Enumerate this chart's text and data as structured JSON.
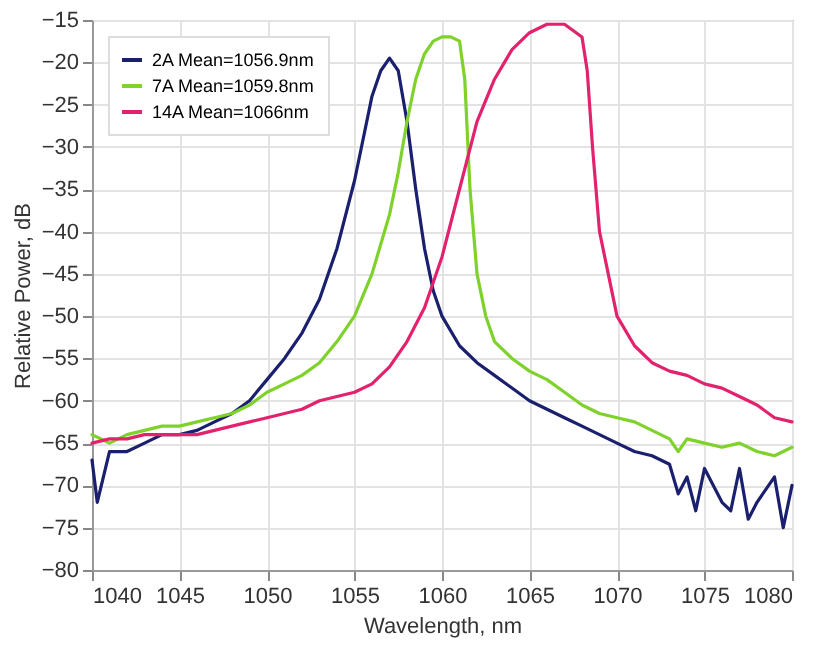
{
  "chart_data": {
    "type": "line",
    "xlabel": "Wavelength, nm",
    "ylabel": "Relative Power, dB",
    "xlim": [
      1040,
      1080
    ],
    "ylim": [
      -80,
      -15
    ],
    "xticks": [
      1040,
      1045,
      1050,
      1055,
      1060,
      1065,
      1070,
      1075,
      1080
    ],
    "yticks": [
      -80,
      -75,
      -70,
      -65,
      -60,
      -55,
      -50,
      -45,
      -40,
      -35,
      -30,
      -25,
      -20,
      -15
    ],
    "grid": true,
    "legend": "top left",
    "series": [
      {
        "name": "2A Mean=1056.9nm",
        "color": "#1a1f6e",
        "x": [
          1040,
          1040.3,
          1041,
          1042,
          1043,
          1044,
          1045,
          1046,
          1047,
          1048,
          1049,
          1050,
          1051,
          1052,
          1053,
          1054,
          1055,
          1055.5,
          1056,
          1056.5,
          1057,
          1057.5,
          1058,
          1058.5,
          1059,
          1059.5,
          1060,
          1061,
          1062,
          1063,
          1064,
          1065,
          1066,
          1067,
          1068,
          1069,
          1070,
          1071,
          1072,
          1073,
          1073.5,
          1074,
          1074.5,
          1075,
          1076,
          1076.5,
          1077,
          1077.5,
          1078,
          1079,
          1079.5,
          1080
        ],
        "values": [
          -67,
          -72,
          -66,
          -66,
          -65,
          -64,
          -64,
          -63.5,
          -62.5,
          -61.5,
          -60,
          -57.5,
          -55,
          -52,
          -48,
          -42,
          -34,
          -29,
          -24,
          -21,
          -19.5,
          -21,
          -27,
          -35,
          -42,
          -47,
          -50,
          -53.5,
          -55.5,
          -57,
          -58.5,
          -60,
          -61,
          -62,
          -63,
          -64,
          -65,
          -66,
          -66.5,
          -67.5,
          -71,
          -69,
          -73,
          -68,
          -72,
          -73,
          -68,
          -74,
          -72,
          -69,
          -75,
          -70
        ]
      },
      {
        "name": "7A Mean=1059.8nm",
        "color": "#7fd12b",
        "x": [
          1040,
          1041,
          1042,
          1043,
          1044,
          1045,
          1046,
          1047,
          1048,
          1049,
          1050,
          1051,
          1052,
          1053,
          1054,
          1055,
          1056,
          1057,
          1057.5,
          1058,
          1058.5,
          1059,
          1059.5,
          1060,
          1060.5,
          1061,
          1061.3,
          1061.6,
          1062,
          1062.5,
          1063,
          1064,
          1065,
          1066,
          1067,
          1068,
          1069,
          1070,
          1071,
          1072,
          1073,
          1073.5,
          1074,
          1075,
          1076,
          1077,
          1078,
          1079,
          1080
        ],
        "values": [
          -64,
          -65,
          -64,
          -63.5,
          -63,
          -63,
          -62.5,
          -62,
          -61.5,
          -60.5,
          -59,
          -58,
          -57,
          -55.5,
          -53,
          -50,
          -45,
          -38,
          -33,
          -27,
          -22,
          -19,
          -17.5,
          -17,
          -17,
          -17.5,
          -22,
          -35,
          -45,
          -50,
          -53,
          -55,
          -56.5,
          -57.5,
          -59,
          -60.5,
          -61.5,
          -62,
          -62.5,
          -63.5,
          -64.5,
          -66,
          -64.5,
          -65,
          -65.5,
          -65,
          -66,
          -66.5,
          -65.5
        ]
      },
      {
        "name": "14A Mean=1066nm",
        "color": "#e3226e",
        "x": [
          1040,
          1041,
          1042,
          1043,
          1044,
          1045,
          1046,
          1047,
          1048,
          1049,
          1050,
          1051,
          1052,
          1053,
          1054,
          1055,
          1056,
          1057,
          1058,
          1059,
          1060,
          1061,
          1062,
          1063,
          1064,
          1065,
          1066,
          1067,
          1068,
          1068.3,
          1068.6,
          1069,
          1069.5,
          1070,
          1071,
          1072,
          1073,
          1074,
          1075,
          1076,
          1077,
          1078,
          1079,
          1080
        ],
        "values": [
          -65,
          -64.5,
          -64.5,
          -64,
          -64,
          -64,
          -64,
          -63.5,
          -63,
          -62.5,
          -62,
          -61.5,
          -61,
          -60,
          -59.5,
          -59,
          -58,
          -56,
          -53,
          -49,
          -43,
          -35,
          -27,
          -22,
          -18.5,
          -16.5,
          -15.5,
          -15.5,
          -17,
          -21,
          -30,
          -40,
          -45,
          -50,
          -53.5,
          -55.5,
          -56.5,
          -57,
          -58,
          -58.5,
          -59.5,
          -60.5,
          -62,
          -62.5
        ]
      }
    ]
  }
}
